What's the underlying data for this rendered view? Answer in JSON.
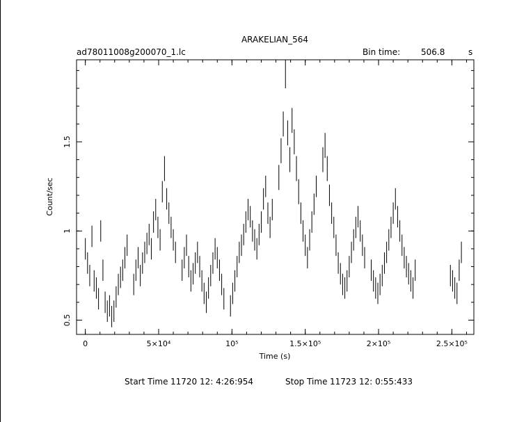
{
  "header": {
    "title": "ARAKELIAN_564",
    "filename": "ad78011008g200070_1.lc",
    "bin_label": "Bin time:",
    "bin_value": "506.8",
    "bin_unit": "s"
  },
  "footer": {
    "start_label": "Start Time",
    "start_value": "11720 12: 4:26:954",
    "stop_label": "Stop Time",
    "stop_value": "11723 12: 0:55:433"
  },
  "chart_data": {
    "type": "scatter",
    "xlabel": "Time (s)",
    "ylabel": "Count/sec",
    "xlim": [
      -6000,
      265000
    ],
    "ylim": [
      0.42,
      1.96
    ],
    "xticks": [
      {
        "value": 0,
        "label": "0"
      },
      {
        "value": 50000,
        "label": "5×10⁴"
      },
      {
        "value": 100000,
        "label": "10⁵"
      },
      {
        "value": 150000,
        "label": "1.5×10⁵"
      },
      {
        "value": 200000,
        "label": "2×10⁵"
      },
      {
        "value": 250000,
        "label": "2.5×10⁵"
      }
    ],
    "yticks": [
      {
        "value": 0.5,
        "label": "0.5"
      },
      {
        "value": 1,
        "label": "1"
      },
      {
        "value": 1.5,
        "label": "1.5"
      }
    ],
    "x": [
      0,
      1500,
      3000,
      4500,
      6000,
      7500,
      9000,
      10500,
      12000,
      13500,
      15000,
      16500,
      18000,
      19500,
      21000,
      22500,
      24000,
      25500,
      27000,
      28500,
      33000,
      34500,
      36000,
      37500,
      39000,
      40500,
      42000,
      43500,
      45000,
      46500,
      48000,
      49500,
      51000,
      52500,
      54000,
      55500,
      57000,
      58500,
      60000,
      61500,
      66000,
      67500,
      69000,
      70500,
      72000,
      73500,
      75000,
      76500,
      78000,
      79500,
      81000,
      82500,
      84000,
      85500,
      87000,
      88500,
      90000,
      91500,
      93000,
      94500,
      99000,
      100500,
      102000,
      103500,
      105000,
      106500,
      108000,
      109500,
      111000,
      112500,
      114000,
      115500,
      117000,
      118500,
      120000,
      121500,
      123000,
      124500,
      126000,
      127500,
      132000,
      133500,
      135000,
      136500,
      138000,
      139500,
      141000,
      142500,
      144000,
      145500,
      147000,
      148500,
      150000,
      151500,
      153000,
      154500,
      156000,
      157500,
      162000,
      163500,
      165000,
      166500,
      168000,
      169500,
      171000,
      172500,
      174000,
      175500,
      177000,
      178500,
      180000,
      181500,
      183000,
      184500,
      186000,
      187500,
      189000,
      190500,
      195000,
      196500,
      198000,
      199500,
      201000,
      202500,
      204000,
      205500,
      207000,
      208500,
      210000,
      211500,
      213000,
      214500,
      216000,
      217500,
      219000,
      220500,
      222000,
      223500,
      225000,
      249000,
      250500,
      252000,
      253500,
      255000,
      256500
    ],
    "values": [
      0.9,
      0.82,
      0.75,
      0.97,
      0.72,
      0.68,
      0.62,
      1.0,
      0.78,
      0.6,
      0.55,
      0.58,
      0.52,
      0.55,
      0.63,
      0.7,
      0.74,
      0.78,
      0.85,
      0.92,
      0.7,
      0.78,
      0.85,
      0.75,
      0.82,
      0.88,
      0.93,
      0.98,
      0.9,
      1.05,
      1.12,
      1.02,
      0.95,
      1.22,
      1.35,
      1.18,
      1.1,
      1.02,
      0.95,
      0.88,
      0.78,
      0.85,
      0.92,
      0.8,
      0.72,
      0.76,
      0.82,
      0.88,
      0.8,
      0.72,
      0.65,
      0.6,
      0.68,
      0.75,
      0.82,
      0.9,
      0.85,
      0.78,
      0.7,
      0.62,
      0.58,
      0.65,
      0.72,
      0.8,
      0.88,
      0.92,
      0.98,
      1.05,
      1.12,
      1.08,
      1.0,
      0.95,
      0.9,
      0.98,
      1.05,
      1.18,
      1.25,
      1.1,
      1.02,
      1.12,
      1.3,
      1.45,
      1.6,
      1.88,
      1.55,
      1.4,
      1.62,
      1.5,
      1.35,
      1.22,
      1.1,
      1.0,
      0.92,
      0.85,
      0.95,
      1.05,
      1.15,
      1.25,
      1.4,
      1.48,
      1.35,
      1.2,
      1.1,
      1.02,
      0.92,
      0.82,
      0.76,
      0.7,
      0.68,
      0.72,
      0.8,
      0.88,
      0.95,
      1.02,
      1.08,
      1.0,
      0.92,
      0.85,
      0.78,
      0.72,
      0.68,
      0.65,
      0.7,
      0.75,
      0.82,
      0.88,
      0.95,
      1.02,
      1.1,
      1.18,
      1.08,
      1.0,
      0.92,
      0.85,
      0.8,
      0.76,
      0.72,
      0.68,
      0.78,
      0.75,
      0.72,
      0.68,
      0.65,
      0.78,
      0.88
    ],
    "errors": [
      0.06,
      0.06,
      0.06,
      0.06,
      0.06,
      0.06,
      0.06,
      0.06,
      0.06,
      0.06,
      0.06,
      0.06,
      0.06,
      0.06,
      0.06,
      0.06,
      0.06,
      0.06,
      0.06,
      0.06,
      0.06,
      0.06,
      0.06,
      0.06,
      0.06,
      0.06,
      0.06,
      0.06,
      0.06,
      0.06,
      0.06,
      0.06,
      0.06,
      0.06,
      0.07,
      0.06,
      0.06,
      0.06,
      0.06,
      0.06,
      0.06,
      0.06,
      0.06,
      0.06,
      0.06,
      0.06,
      0.06,
      0.06,
      0.06,
      0.06,
      0.06,
      0.06,
      0.06,
      0.06,
      0.06,
      0.06,
      0.06,
      0.06,
      0.06,
      0.06,
      0.06,
      0.06,
      0.06,
      0.06,
      0.06,
      0.06,
      0.06,
      0.06,
      0.06,
      0.06,
      0.06,
      0.06,
      0.06,
      0.06,
      0.06,
      0.06,
      0.06,
      0.06,
      0.06,
      0.06,
      0.07,
      0.07,
      0.07,
      0.08,
      0.07,
      0.07,
      0.07,
      0.07,
      0.07,
      0.07,
      0.06,
      0.06,
      0.06,
      0.06,
      0.06,
      0.06,
      0.06,
      0.06,
      0.07,
      0.07,
      0.07,
      0.06,
      0.06,
      0.06,
      0.06,
      0.06,
      0.06,
      0.06,
      0.06,
      0.06,
      0.06,
      0.06,
      0.06,
      0.06,
      0.06,
      0.06,
      0.06,
      0.06,
      0.06,
      0.06,
      0.06,
      0.06,
      0.06,
      0.06,
      0.06,
      0.06,
      0.06,
      0.06,
      0.06,
      0.06,
      0.06,
      0.06,
      0.06,
      0.06,
      0.06,
      0.06,
      0.06,
      0.06,
      0.06,
      0.06,
      0.06,
      0.06,
      0.06,
      0.06,
      0.06
    ],
    "grid": false,
    "legend": "none"
  }
}
